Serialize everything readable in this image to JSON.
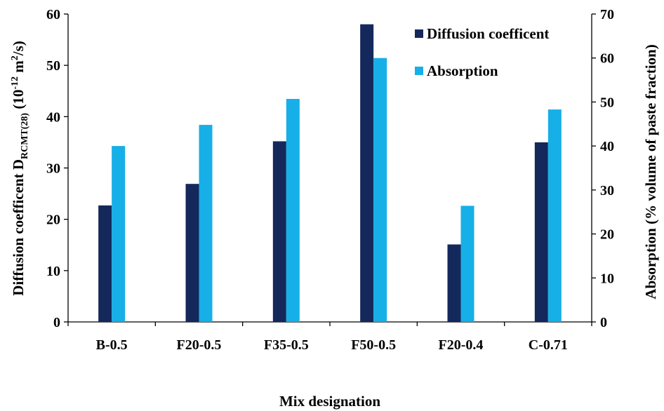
{
  "chart_data": {
    "type": "bar",
    "categories": [
      "B-0.5",
      "F20-0.5",
      "F35-0.5",
      "F50-0.5",
      "F20-0.4",
      "C-0.71"
    ],
    "series": [
      {
        "name": "Diffusion coefficent",
        "axis": "left",
        "color": "#14285c",
        "values": [
          22.7,
          26.9,
          35.2,
          58.0,
          15.1,
          35.0
        ]
      },
      {
        "name": "Absorption",
        "axis": "right",
        "color": "#17afe7",
        "values": [
          40.0,
          44.8,
          50.7,
          60.0,
          26.4,
          48.3
        ]
      }
    ],
    "xlabel": "Mix designation",
    "ylabel": {
      "prefix": "Diffusion coefficent D",
      "subscript": "RCMT(28)",
      "unit_open": " (10",
      "unit_exp": "-12",
      "unit_mid": " m",
      "unit_exp2": "2",
      "unit_close": "/s)"
    },
    "y2label": "Absorption (% volume of paste fraction)",
    "ylim": [
      0,
      60
    ],
    "y2lim": [
      0,
      70
    ],
    "yticks": [
      "0",
      "10",
      "20",
      "30",
      "40",
      "50",
      "60"
    ],
    "y2ticks": [
      "0",
      "10",
      "20",
      "30",
      "40",
      "50",
      "60",
      "70"
    ],
    "legend": "top-right"
  }
}
